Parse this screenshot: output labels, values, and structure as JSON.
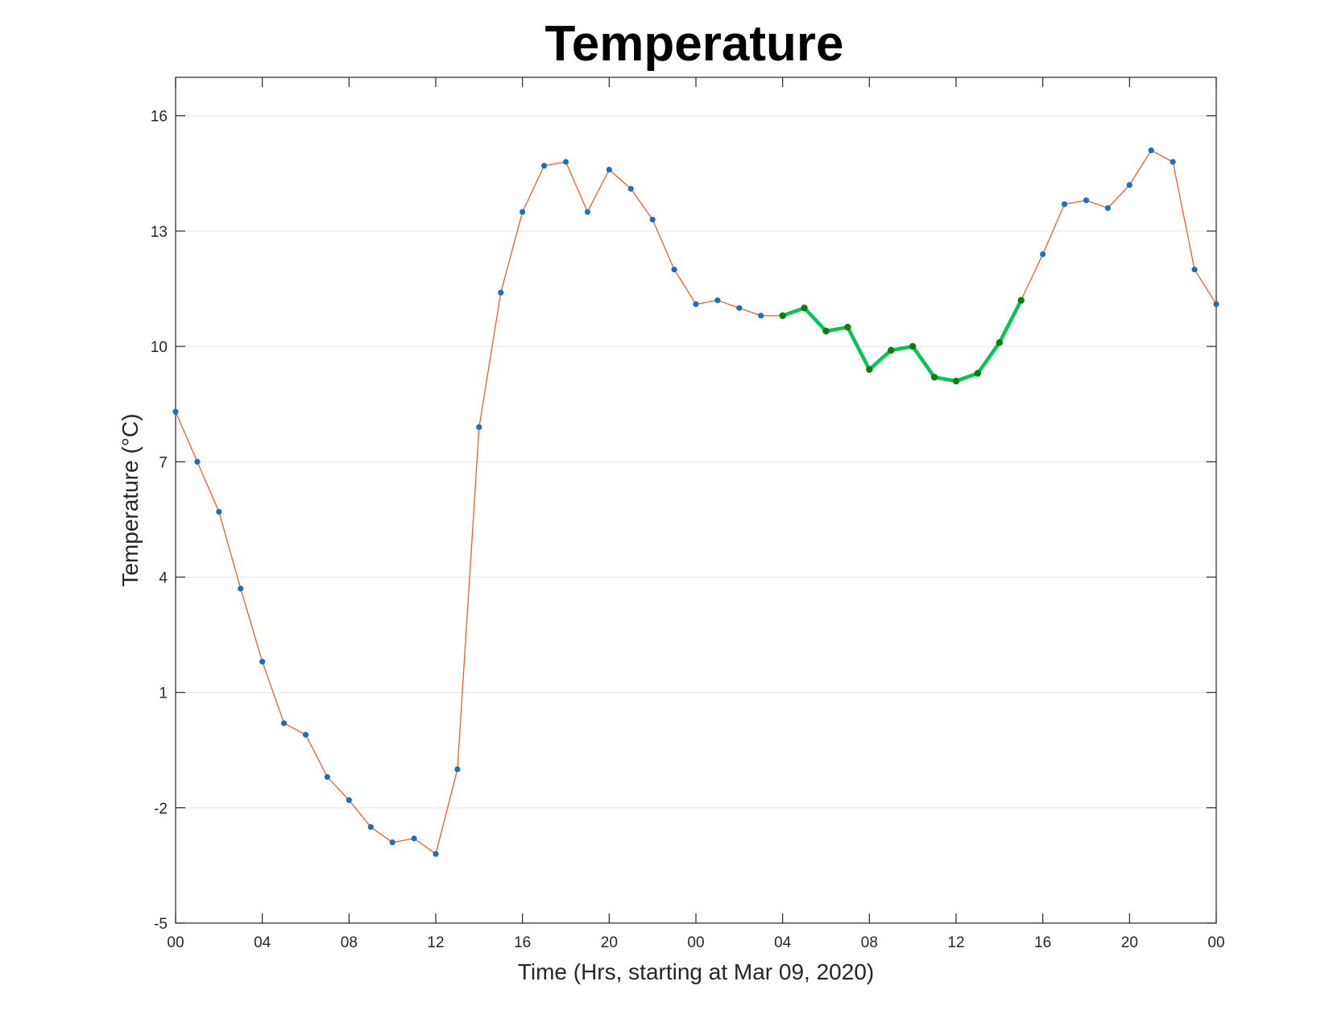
{
  "chart_data": {
    "type": "line",
    "title": "Temperature",
    "xlabel": "Time (Hrs, starting at Mar 09, 2020)",
    "ylabel": "Temperature (°C)",
    "xlim": [
      0,
      48
    ],
    "ylim": [
      -5,
      17
    ],
    "xticks": [
      0,
      4,
      8,
      12,
      16,
      20,
      24,
      28,
      32,
      36,
      40,
      44,
      48
    ],
    "xtick_labels": [
      "00",
      "04",
      "08",
      "12",
      "16",
      "20",
      "00",
      "04",
      "08",
      "12",
      "16",
      "20",
      "00"
    ],
    "yticks": [
      -5,
      -2,
      1,
      4,
      7,
      10,
      13,
      16
    ],
    "ytick_labels": [
      "-5",
      "-2",
      "1",
      "4",
      "7",
      "10",
      "13",
      "16"
    ],
    "grid": "horizontal",
    "series": [
      {
        "color": "#e8602c",
        "marker_color": "#1f6fb4",
        "x": [
          0,
          1,
          2,
          3,
          4,
          5,
          6,
          7,
          8,
          9,
          10,
          11,
          12,
          13,
          14,
          15,
          16,
          17,
          18,
          19,
          20,
          21,
          22,
          23,
          24,
          25,
          26,
          27,
          28,
          29,
          30,
          31,
          32,
          33,
          34,
          35,
          36,
          37,
          38,
          39,
          40,
          41,
          42,
          43,
          44,
          45,
          46,
          47,
          48
        ],
        "values": [
          8.3,
          7.0,
          5.7,
          3.7,
          1.8,
          0.2,
          -0.1,
          -1.2,
          -1.8,
          -2.5,
          -2.9,
          -2.8,
          -3.2,
          -1.0,
          7.9,
          11.4,
          13.5,
          14.7,
          14.8,
          13.5,
          14.6,
          14.1,
          13.3,
          12.0,
          11.1,
          11.2,
          11.0,
          10.8,
          10.8,
          11.0,
          10.4,
          10.5,
          9.4,
          9.9,
          10.0,
          9.2,
          9.1,
          9.3,
          10.1,
          11.2,
          12.4,
          13.7,
          13.8,
          13.6,
          14.2,
          15.1,
          14.8,
          12.0,
          11.1
        ]
      },
      {
        "color": "#00c853",
        "marker_color": "#0a7d0a",
        "x": [
          28,
          29,
          30,
          31,
          32,
          33,
          34,
          35,
          36,
          37,
          38,
          39
        ],
        "values": [
          10.8,
          11.0,
          10.4,
          10.5,
          9.4,
          9.9,
          10.0,
          9.2,
          9.1,
          9.3,
          10.1,
          11.2
        ]
      }
    ]
  }
}
